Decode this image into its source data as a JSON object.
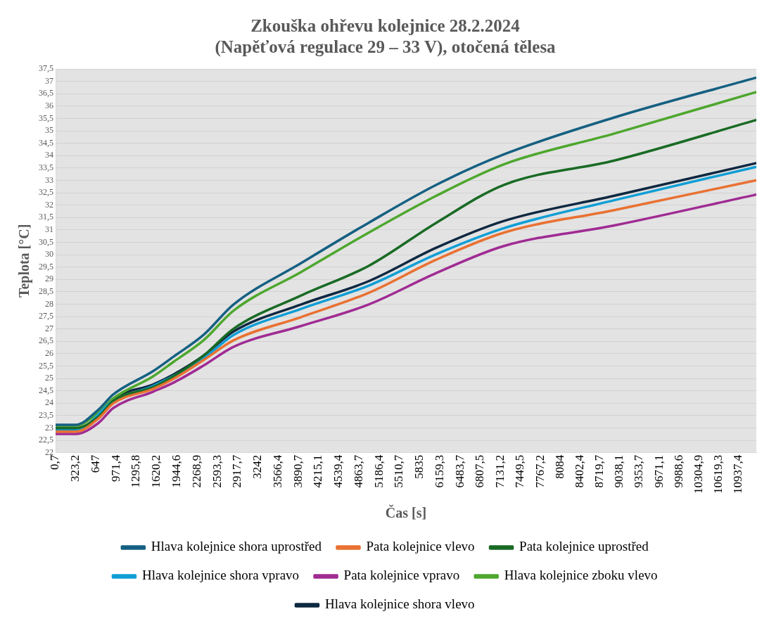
{
  "chart_data": {
    "type": "line",
    "title": "Zkouška ohřevu kolejnice 28.2.2024\n(Napěťová regulace 29 – 33 V), otočená tělesa",
    "xlabel": "Čas [s]",
    "ylabel": "Teplota [°C]",
    "x": [
      0.7,
      325,
      686,
      927,
      1565,
      1889,
      2370,
      2852,
      3934,
      5017,
      6100,
      7183,
      8951,
      11213
    ],
    "xlim": [
      0.7,
      11225
    ],
    "xticks": [
      {
        "value": 0.7,
        "label": "0,7"
      },
      {
        "value": 323.2,
        "label": "323,2"
      },
      647,
      {
        "value": 971.4,
        "label": "971,4"
      },
      {
        "value": 1295.8,
        "label": "1295,8"
      },
      {
        "value": 1620.2,
        "label": "1620,2"
      },
      {
        "value": 1944.6,
        "label": "1944,6"
      },
      {
        "value": 2268.9,
        "label": "2268,9"
      },
      {
        "value": 2593.3,
        "label": "2593,3"
      },
      {
        "value": 2917.7,
        "label": "2917,7"
      },
      3242,
      {
        "value": 3566.4,
        "label": "3566,4"
      },
      {
        "value": 3890.7,
        "label": "3890,7"
      },
      {
        "value": 4215.1,
        "label": "4215,1"
      },
      {
        "value": 4539.4,
        "label": "4539,4"
      },
      {
        "value": 4863.7,
        "label": "4863,7"
      },
      {
        "value": 5186.4,
        "label": "5186,4"
      },
      {
        "value": 5510.7,
        "label": "5510,7"
      },
      5835,
      {
        "value": 6159.3,
        "label": "6159,3"
      },
      {
        "value": 6483.7,
        "label": "6483,7"
      },
      {
        "value": 6807.5,
        "label": "6807,5"
      },
      {
        "value": 7131.2,
        "label": "7131,2"
      },
      {
        "value": 7449.5,
        "label": "7449,5"
      },
      {
        "value": 7767.2,
        "label": "7767,2"
      },
      8084,
      {
        "value": 8402.4,
        "label": "8402,4"
      },
      {
        "value": 8719.7,
        "label": "8719,7"
      },
      {
        "value": 9038.1,
        "label": "9038,1"
      },
      {
        "value": 9353.7,
        "label": "9353,7"
      },
      {
        "value": 9671.1,
        "label": "9671,1"
      },
      {
        "value": 9988.6,
        "label": "9988,6"
      },
      {
        "value": 10304.9,
        "label": "10304,9"
      },
      {
        "value": 10619.3,
        "label": "10619,3"
      },
      {
        "value": 10937.4,
        "label": "10937,4"
      }
    ],
    "ylim": [
      22,
      37.5
    ],
    "yticks": [
      22,
      {
        "value": 22.5,
        "label": "22,5"
      },
      23,
      {
        "value": 23.5,
        "label": "23,5"
      },
      24,
      {
        "value": 24.5,
        "label": "24,5"
      },
      25,
      {
        "value": 25.5,
        "label": "25,5"
      },
      26,
      {
        "value": 26.5,
        "label": "26,5"
      },
      27,
      {
        "value": 27.5,
        "label": "27,5"
      },
      28,
      {
        "value": 28.5,
        "label": "28,5"
      },
      29,
      {
        "value": 29.5,
        "label": "29,5"
      },
      30,
      {
        "value": 30.5,
        "label": "30,5"
      },
      31,
      {
        "value": 31.5,
        "label": "31,5"
      },
      32,
      {
        "value": 32.5,
        "label": "32,5"
      },
      33,
      {
        "value": 33.5,
        "label": "33,5"
      },
      34,
      {
        "value": 34.5,
        "label": "34,5"
      },
      35,
      {
        "value": 35.5,
        "label": "35,5"
      },
      36,
      {
        "value": 36.5,
        "label": "36,5"
      },
      37,
      {
        "value": 37.5,
        "label": "37,5"
      }
    ],
    "grid": "y",
    "legend": "bottom",
    "marker": "none",
    "line_style": "solid",
    "series": [
      {
        "name": "Hlava kolejnice shora uprostřed",
        "color": "#156082",
        "values": [
          23.13,
          23.13,
          23.74,
          24.36,
          25.3,
          25.88,
          26.76,
          27.99,
          29.66,
          31.29,
          32.82,
          34.05,
          35.54,
          37.14
        ]
      },
      {
        "name": "Pata kolejnice vlevo",
        "color": "#e97132",
        "values": [
          22.85,
          22.85,
          23.38,
          24.0,
          24.58,
          24.98,
          25.74,
          26.54,
          27.48,
          28.46,
          29.8,
          30.89,
          31.8,
          33.0
        ]
      },
      {
        "name": "Pata kolejnice uprostřed",
        "color": "#196b24",
        "values": [
          23.0,
          23.0,
          23.45,
          24.1,
          24.65,
          25.09,
          25.92,
          27.01,
          28.35,
          29.55,
          31.29,
          32.82,
          33.8,
          35.43
        ]
      },
      {
        "name": "Hlava kolejnice shora vpravo",
        "color": "#0f9ed5",
        "values": [
          22.9,
          22.9,
          null,
          24.1,
          24.7,
          null,
          25.81,
          26.76,
          27.81,
          28.75,
          30.02,
          31.07,
          32.2,
          33.54
        ]
      },
      {
        "name": "Pata kolejnice vpravo",
        "color": "#a02b93",
        "values": [
          22.76,
          22.76,
          23.2,
          23.81,
          24.47,
          24.83,
          25.52,
          26.28,
          27.12,
          27.99,
          29.26,
          30.35,
          31.18,
          32.42
        ]
      },
      {
        "name": "Hlava kolejnice zboku vlevo",
        "color": "#4ea72e",
        "values": [
          23.1,
          23.1,
          23.63,
          24.2,
          25.09,
          25.67,
          26.54,
          27.74,
          29.3,
          30.89,
          32.38,
          33.65,
          34.89,
          36.56
        ]
      },
      {
        "name": "Hlava kolejnice shora vlevo",
        "color": "#0e2841",
        "values": [
          22.94,
          22.94,
          23.49,
          24.18,
          24.76,
          25.16,
          25.92,
          26.9,
          27.99,
          28.93,
          30.28,
          31.36,
          32.38,
          33.69
        ]
      }
    ]
  }
}
